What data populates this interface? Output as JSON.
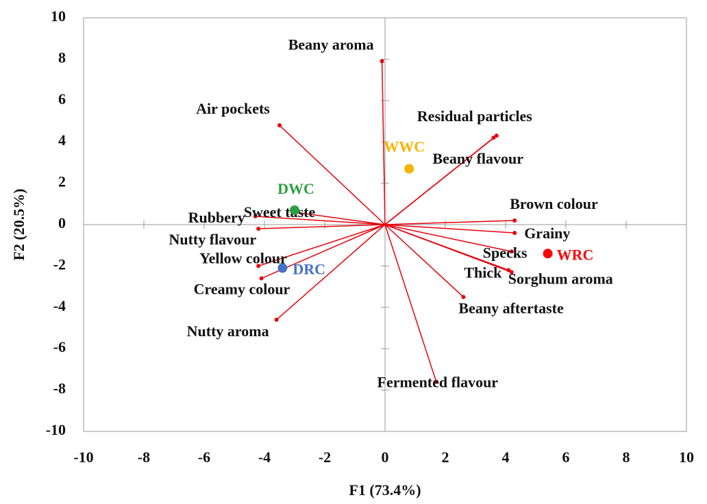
{
  "chart_data": {
    "type": "biplot",
    "xlabel": "F1 (73.4%)",
    "ylabel": "F2 (20.5%)",
    "xlim": [
      -10,
      10
    ],
    "ylim": [
      -10,
      10
    ],
    "xticks": [
      -10,
      -8,
      -6,
      -4,
      -2,
      0,
      2,
      4,
      6,
      8,
      10
    ],
    "yticks": [
      -10,
      -8,
      -6,
      -4,
      -2,
      0,
      2,
      4,
      6,
      8,
      10
    ],
    "vector_color": "#e8000b",
    "vectors": [
      {
        "name": "Beany aroma",
        "x": -0.1,
        "y": 7.9
      },
      {
        "name": "Air pockets",
        "x": -3.5,
        "y": 4.8
      },
      {
        "name": "Residual particles",
        "x": 3.7,
        "y": 4.3
      },
      {
        "name": "Beany flavour",
        "x": 3.6,
        "y": 4.2
      },
      {
        "name": "Brown colour",
        "x": 4.3,
        "y": 0.2
      },
      {
        "name": "Grainy",
        "x": 4.3,
        "y": -0.4
      },
      {
        "name": "Specks",
        "x": 4.2,
        "y": -1.3
      },
      {
        "name": "Thick",
        "x": 4.1,
        "y": -2.2
      },
      {
        "name": "Sorghum aroma",
        "x": 4.2,
        "y": -2.3
      },
      {
        "name": "Beany aftertaste",
        "x": 2.6,
        "y": -3.5
      },
      {
        "name": "Fermented flavour",
        "x": 1.7,
        "y": -7.6
      },
      {
        "name": "Nutty aroma",
        "x": -3.6,
        "y": -4.6
      },
      {
        "name": "Creamy colour",
        "x": -4.1,
        "y": -2.6
      },
      {
        "name": "Yellow colour",
        "x": -4.2,
        "y": -2.0
      },
      {
        "name": "Nutty flavour",
        "x": -4.2,
        "y": -0.2
      },
      {
        "name": "Rubbery",
        "x": -4.3,
        "y": 0.4
      },
      {
        "name": "Sweet taste",
        "x": -3.0,
        "y": 0.6
      }
    ],
    "points": [
      {
        "name": "WWC",
        "color": "#f5b400",
        "x": 0.8,
        "y": 2.7
      },
      {
        "name": "DWC",
        "color": "#2aa040",
        "x": -3.0,
        "y": 0.7
      },
      {
        "name": "DRC",
        "color": "#4472c4",
        "x": -3.4,
        "y": -2.1
      },
      {
        "name": "WRC",
        "color": "#ff0000",
        "x": 5.4,
        "y": -1.4
      }
    ]
  }
}
